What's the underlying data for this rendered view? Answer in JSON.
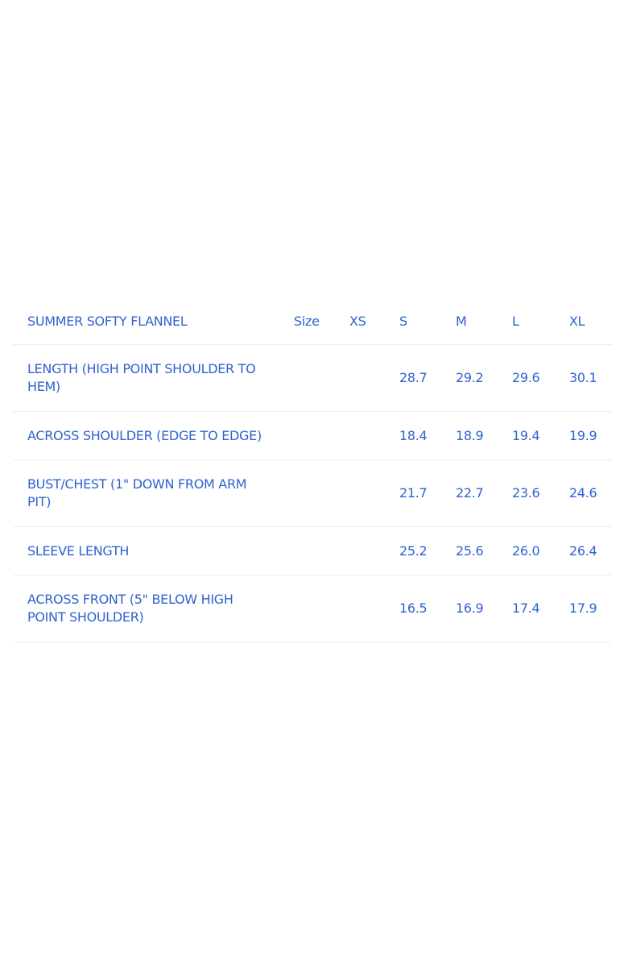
{
  "table": {
    "title": "SUMMER SOFTY FLANNEL",
    "headers": [
      "Size",
      "XS",
      "S",
      "M",
      "L",
      "XL"
    ],
    "rows": [
      {
        "label": "LENGTH (HIGH POINT SHOULDER TO HEM)",
        "values": [
          "",
          "",
          "28.7",
          "29.2",
          "29.6",
          "30.1"
        ]
      },
      {
        "label": "ACROSS SHOULDER (EDGE TO EDGE)",
        "values": [
          "",
          "",
          "18.4",
          "18.9",
          "19.4",
          "19.9"
        ]
      },
      {
        "label": "BUST/CHEST (1\" DOWN FROM ARM PIT)",
        "values": [
          "",
          "",
          "21.7",
          "22.7",
          "23.6",
          "24.6"
        ]
      },
      {
        "label": "SLEEVE LENGTH",
        "values": [
          "",
          "",
          "25.2",
          "25.6",
          "26.0",
          "26.4"
        ]
      },
      {
        "label": "ACROSS FRONT (5\" BELOW HIGH POINT SHOULDER)",
        "values": [
          "",
          "",
          "16.5",
          "16.9",
          "17.4",
          "17.9"
        ]
      }
    ]
  },
  "colors": {
    "text": "#2f62d0",
    "divider": "#e8ecf6"
  }
}
